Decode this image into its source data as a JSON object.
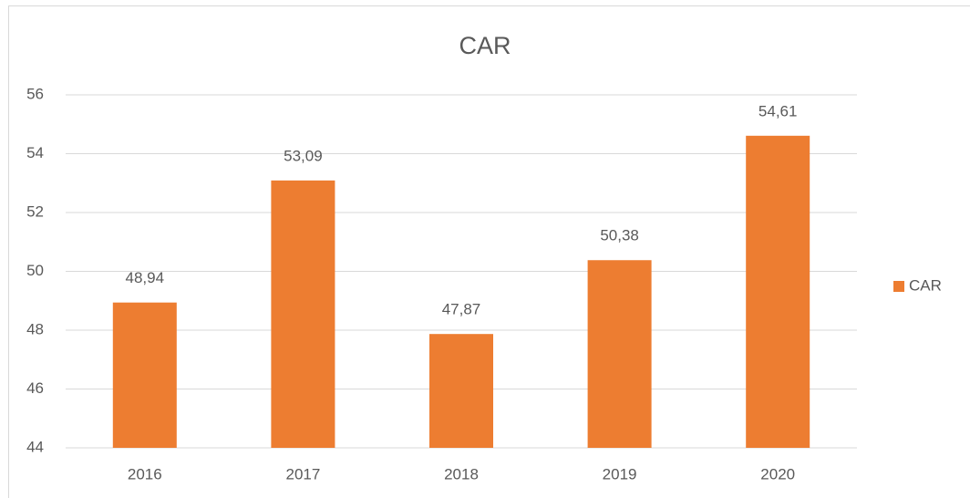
{
  "chart_data": {
    "type": "bar",
    "title": "CAR",
    "categories": [
      "2016",
      "2017",
      "2018",
      "2019",
      "2020"
    ],
    "series": [
      {
        "name": "CAR",
        "color": "#ed7d31",
        "values": [
          48.94,
          53.09,
          47.87,
          50.38,
          54.61
        ],
        "value_labels": [
          "48,94",
          "53,09",
          "47,87",
          "50,38",
          "54,61"
        ]
      }
    ],
    "ylim": [
      44,
      56
    ],
    "yticks": [
      44,
      46,
      48,
      50,
      52,
      54,
      56
    ],
    "grid": true,
    "legend": "right"
  }
}
